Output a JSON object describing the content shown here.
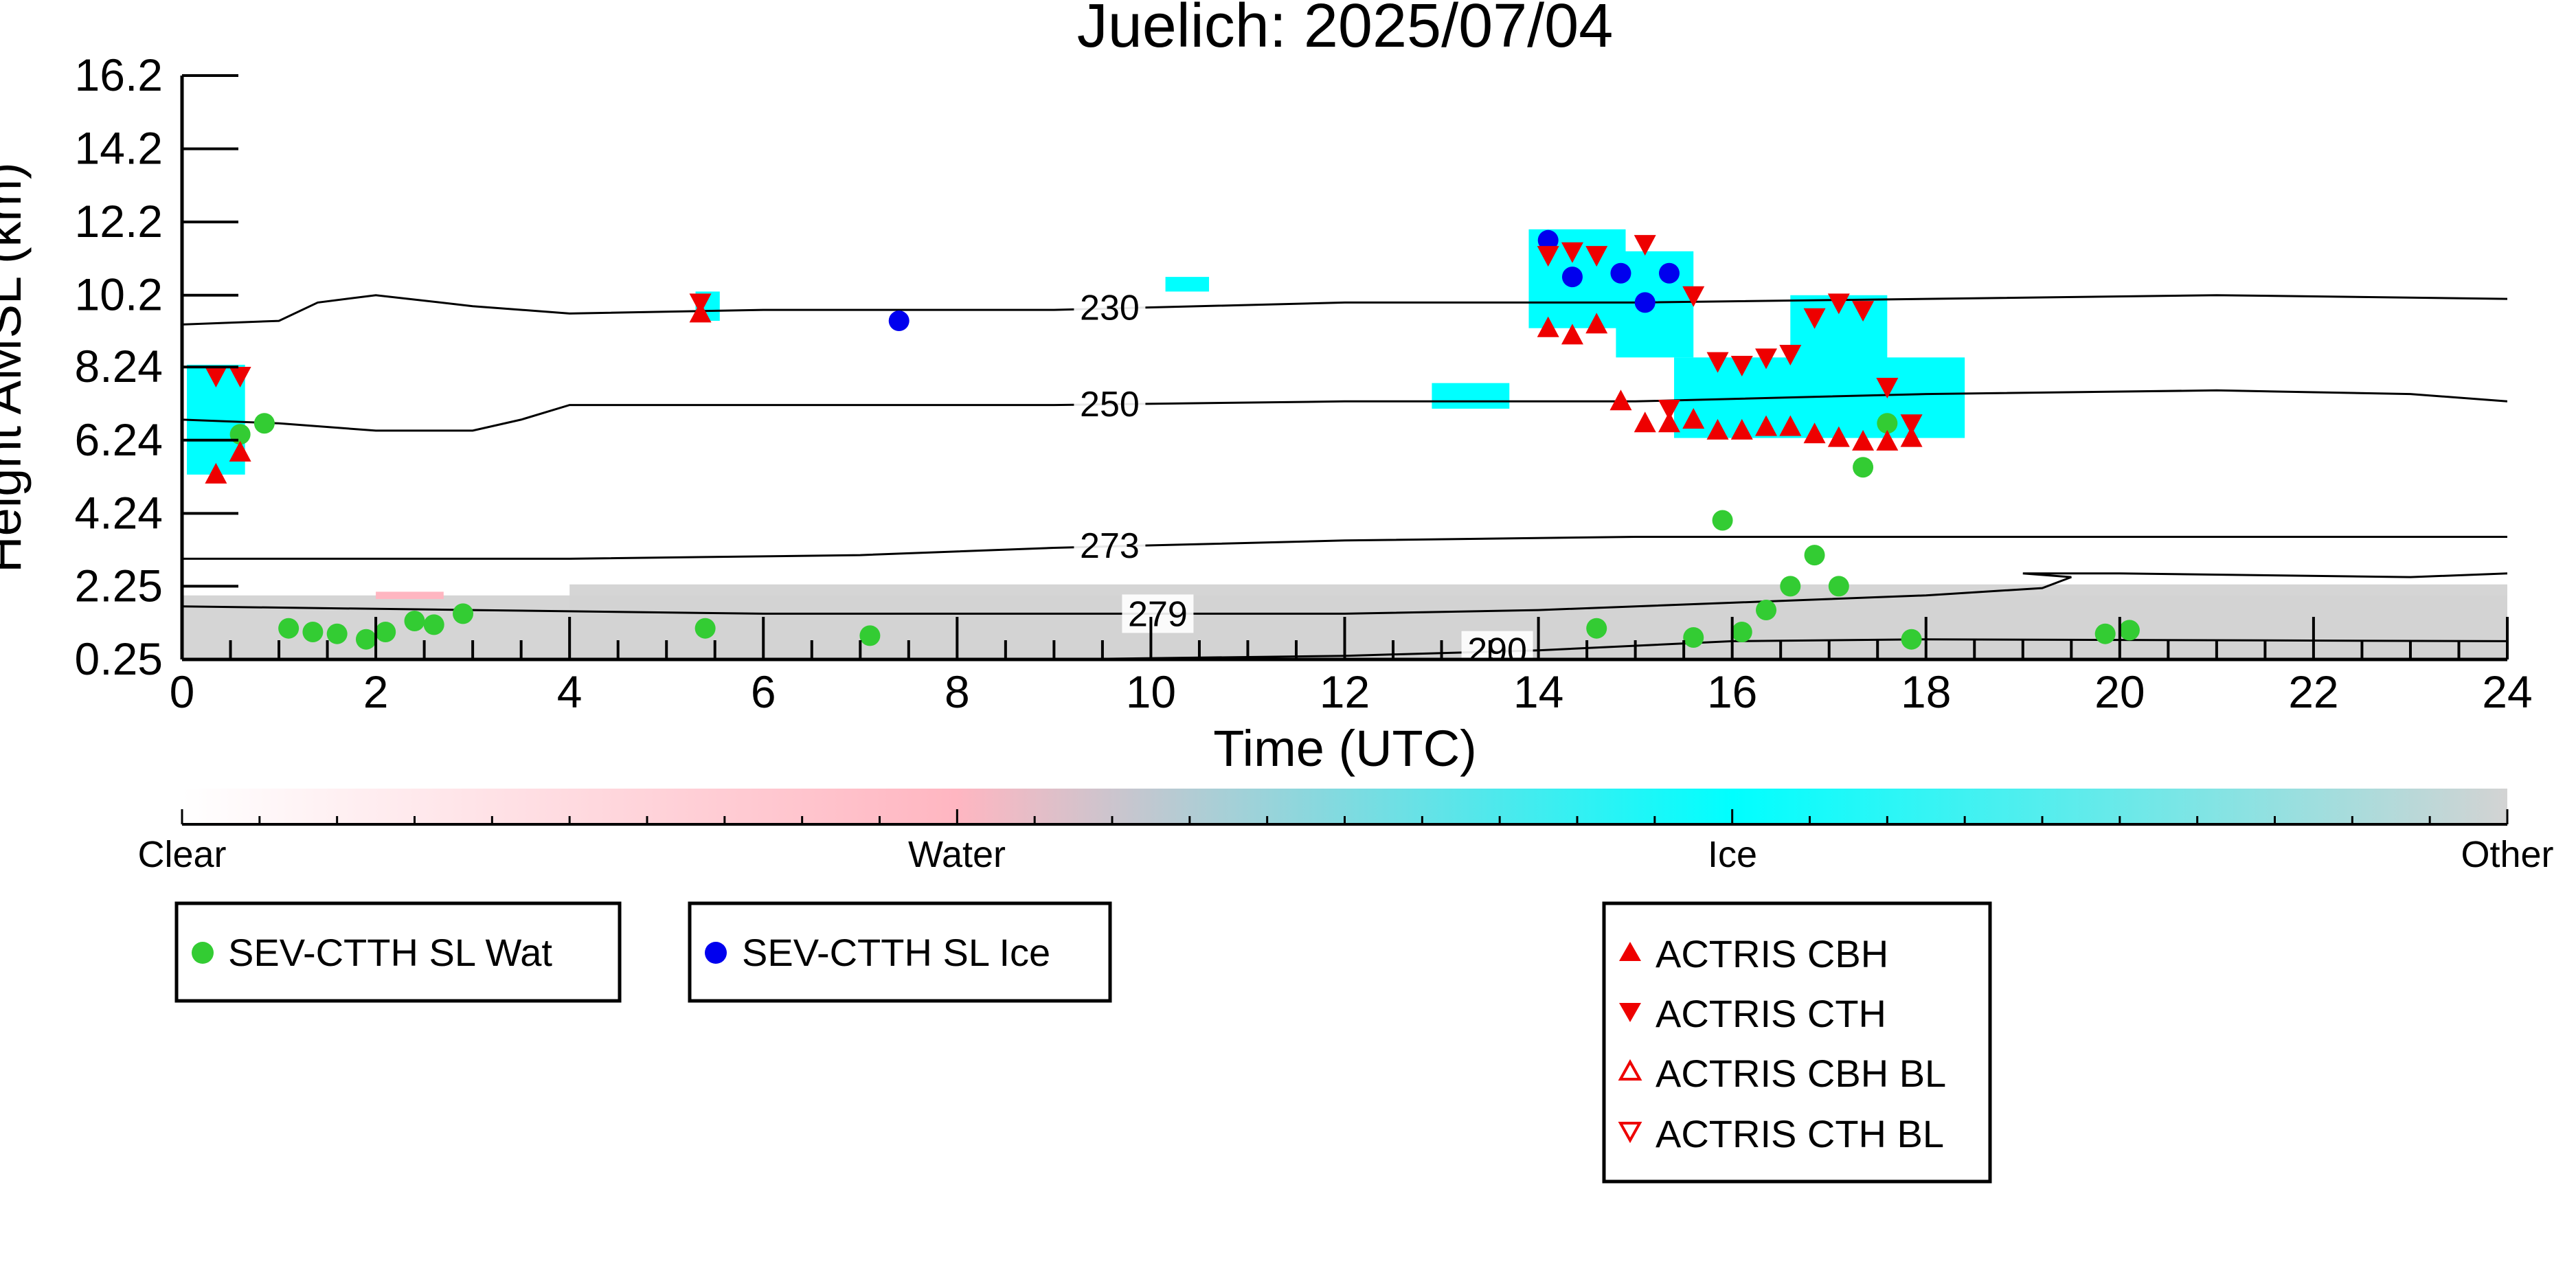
{
  "chart_data": {
    "type": "scatter",
    "title": "Juelich: 2025/07/04",
    "xlabel": "Time (UTC)",
    "ylabel": "Height AMSL (km)",
    "xlim": [
      0,
      24
    ],
    "ylim": [
      0.25,
      16.2
    ],
    "x_ticks": [
      "0",
      "2",
      "4",
      "6",
      "8",
      "10",
      "12",
      "14",
      "16",
      "18",
      "20",
      "22",
      "24"
    ],
    "y_ticks": [
      "0.25",
      "2.25",
      "4.24",
      "6.24",
      "8.24",
      "10.2",
      "12.2",
      "14.2",
      "16.2"
    ],
    "grid": false,
    "colorbar": {
      "labels": [
        "Clear",
        "Water",
        "Ice",
        "Other"
      ],
      "colors": [
        "#ffffff",
        "#ffb6c1",
        "#00ffff",
        "#d3d3d3"
      ]
    },
    "colors": {
      "ice_cloud": "#00ffff",
      "water_cloud": "#ffb6c1",
      "other": "#d3d3d3",
      "sev_water": "#33cc33",
      "sev_ice": "#0000ee",
      "actris": "#ee0000"
    },
    "isotherms": [
      {
        "label": "230",
        "points": [
          [
            0,
            9.4
          ],
          [
            1,
            9.5
          ],
          [
            1.4,
            10.0
          ],
          [
            2,
            10.2
          ],
          [
            3,
            9.9
          ],
          [
            4,
            9.7
          ],
          [
            6,
            9.8
          ],
          [
            9,
            9.8
          ],
          [
            12,
            10.0
          ],
          [
            15,
            10.0
          ],
          [
            18,
            10.1
          ],
          [
            21,
            10.2
          ],
          [
            24,
            10.1
          ]
        ]
      },
      {
        "label": "250",
        "points": [
          [
            0,
            6.8
          ],
          [
            1,
            6.7
          ],
          [
            2,
            6.5
          ],
          [
            3,
            6.5
          ],
          [
            3.5,
            6.8
          ],
          [
            4,
            7.2
          ],
          [
            6,
            7.2
          ],
          [
            9,
            7.2
          ],
          [
            12,
            7.3
          ],
          [
            15,
            7.3
          ],
          [
            18,
            7.5
          ],
          [
            21,
            7.6
          ],
          [
            23,
            7.5
          ],
          [
            24,
            7.3
          ]
        ]
      },
      {
        "label": "273",
        "points": [
          [
            0,
            3.0
          ],
          [
            4,
            3.0
          ],
          [
            7,
            3.1
          ],
          [
            9,
            3.3
          ],
          [
            12,
            3.5
          ],
          [
            15,
            3.6
          ],
          [
            18,
            3.6
          ],
          [
            24,
            3.6
          ]
        ]
      },
      {
        "label": "279",
        "points": [
          [
            0,
            1.7
          ],
          [
            3,
            1.6
          ],
          [
            6,
            1.5
          ],
          [
            9,
            1.5
          ],
          [
            12,
            1.5
          ],
          [
            14,
            1.6
          ],
          [
            16,
            1.8
          ],
          [
            18,
            2.0
          ],
          [
            19.2,
            2.2
          ],
          [
            19.5,
            2.5
          ],
          [
            19,
            2.6
          ],
          [
            20,
            2.6
          ],
          [
            23,
            2.5
          ],
          [
            24,
            2.6
          ]
        ]
      },
      {
        "label": "290",
        "points": [
          [
            9,
            0.25
          ],
          [
            12,
            0.35
          ],
          [
            14,
            0.5
          ],
          [
            16,
            0.75
          ],
          [
            18,
            0.8
          ],
          [
            24,
            0.75
          ]
        ]
      }
    ],
    "series": [
      {
        "name": "SEV-CTTH SL Wat",
        "marker": "circle",
        "x": [
          0.6,
          0.85,
          1.1,
          1.35,
          1.6,
          1.9,
          2.1,
          2.4,
          2.6,
          2.9,
          5.4,
          7.1,
          14.6,
          15.6,
          15.9,
          16.1,
          16.35,
          16.6,
          16.85,
          17.1,
          17.35,
          17.6,
          17.85,
          19.85,
          20.1
        ],
        "y": [
          6.4,
          6.7,
          1.1,
          1.0,
          0.95,
          0.8,
          1.0,
          1.3,
          1.2,
          1.5,
          1.1,
          0.9,
          1.1,
          0.85,
          4.05,
          1.0,
          1.6,
          2.25,
          3.1,
          2.25,
          5.5,
          6.7,
          0.8,
          0.95,
          1.05
        ]
      },
      {
        "name": "SEV-CTTH SL Ice",
        "marker": "circle",
        "x": [
          7.4,
          14.1,
          14.35,
          14.85,
          15.1,
          15.35
        ],
        "y": [
          9.5,
          11.7,
          10.7,
          10.8,
          10.0,
          10.8
        ]
      },
      {
        "name": "ACTRIS CBH",
        "marker": "triangle-up",
        "x": [
          0.35,
          0.6,
          5.35,
          14.1,
          14.35,
          14.6,
          14.85,
          15.1,
          15.35,
          15.6,
          15.85,
          16.1,
          16.35,
          16.6,
          16.85,
          17.1,
          17.35,
          17.6,
          17.85
        ],
        "y": [
          5.3,
          5.9,
          9.7,
          9.3,
          9.1,
          9.4,
          7.3,
          6.7,
          6.7,
          6.8,
          6.5,
          6.5,
          6.6,
          6.6,
          6.4,
          6.3,
          6.2,
          6.2,
          6.3
        ]
      },
      {
        "name": "ACTRIS CTH",
        "marker": "triangle-down",
        "x": [
          0.35,
          0.6,
          5.35,
          14.1,
          14.35,
          14.6,
          15.1,
          15.35,
          15.6,
          15.85,
          16.1,
          16.35,
          16.6,
          16.85,
          17.1,
          17.35,
          17.6,
          17.85
        ],
        "y": [
          8.0,
          8.0,
          10.0,
          11.3,
          11.4,
          11.3,
          11.6,
          7.1,
          10.2,
          8.4,
          8.3,
          8.5,
          8.6,
          9.6,
          10.0,
          9.8,
          7.7,
          6.7
        ]
      },
      {
        "name": "ACTRIS CBH BL",
        "marker": "triangle-up-open",
        "x": [],
        "y": []
      },
      {
        "name": "ACTRIS CTH BL",
        "marker": "triangle-down-open",
        "x": [],
        "y": []
      }
    ],
    "cloud_regions": [
      {
        "phase": "Ice",
        "x": [
          0.05,
          0.65
        ],
        "y": [
          5.3,
          8.3
        ]
      },
      {
        "phase": "Ice",
        "x": [
          0.05,
          0.55
        ],
        "y": [
          6.3,
          7.3
        ]
      },
      {
        "phase": "Ice",
        "x": [
          5.3,
          5.55
        ],
        "y": [
          9.5,
          10.3
        ]
      },
      {
        "phase": "Ice",
        "x": [
          13.9,
          14.9
        ],
        "y": [
          9.3,
          12.0
        ]
      },
      {
        "phase": "Ice",
        "x": [
          14.8,
          15.6
        ],
        "y": [
          8.5,
          11.4
        ]
      },
      {
        "phase": "Ice",
        "x": [
          15.4,
          18.4
        ],
        "y": [
          6.3,
          8.5
        ]
      },
      {
        "phase": "Ice",
        "x": [
          16.6,
          17.6
        ],
        "y": [
          8.3,
          10.2
        ]
      },
      {
        "phase": "Ice",
        "x": [
          12.9,
          13.7
        ],
        "y": [
          7.1,
          7.8
        ]
      },
      {
        "phase": "Ice",
        "x": [
          10.15,
          10.6
        ],
        "y": [
          10.3,
          10.7
        ]
      },
      {
        "phase": "Other",
        "x": [
          0.0,
          24.0
        ],
        "y": [
          0.25,
          2.0
        ]
      },
      {
        "phase": "Other",
        "x": [
          4.0,
          24.0
        ],
        "y": [
          0.25,
          2.3
        ]
      },
      {
        "phase": "Water",
        "x": [
          2.0,
          2.7
        ],
        "y": [
          1.9,
          2.1
        ]
      }
    ],
    "legends": [
      {
        "position": "bottom-left",
        "entries": [
          "SEV-CTTH SL Wat"
        ]
      },
      {
        "position": "bottom-center",
        "entries": [
          "SEV-CTTH SL Ice"
        ]
      },
      {
        "position": "bottom-right",
        "entries": [
          "ACTRIS CBH",
          "ACTRIS CTH",
          "ACTRIS CBH BL",
          "ACTRIS CTH BL"
        ]
      }
    ]
  }
}
